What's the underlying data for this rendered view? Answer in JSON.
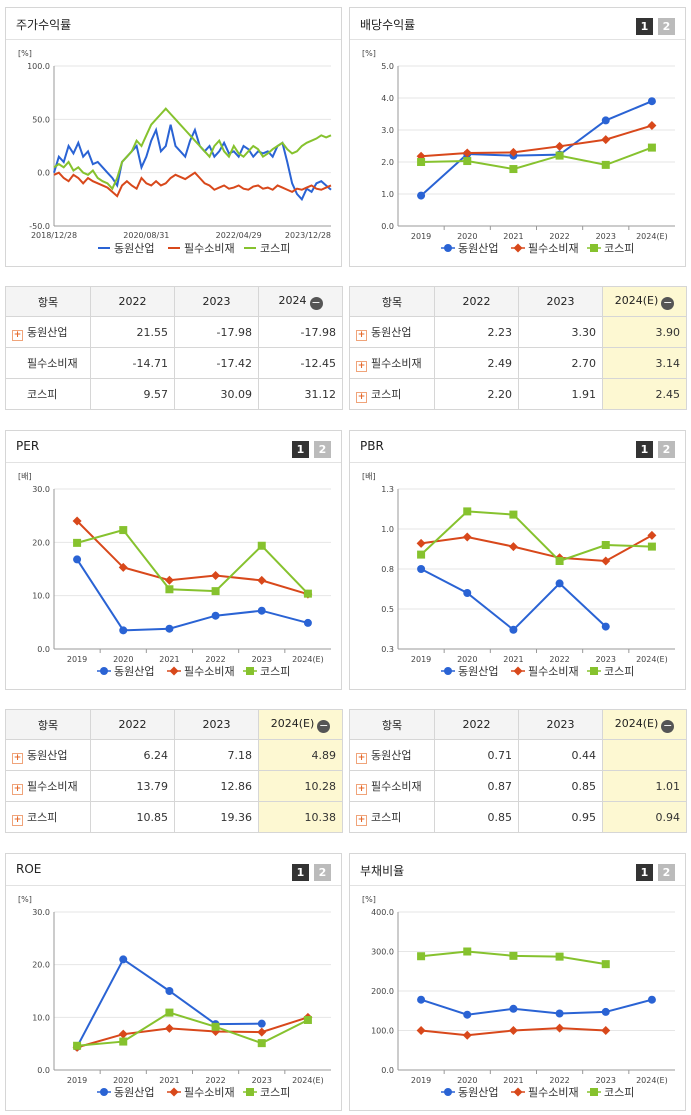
{
  "colors": {
    "company": "#2a63d4",
    "sector": "#d8481b",
    "kospi": "#86c22e"
  },
  "charts": [
    {
      "id": "return",
      "title": "주가수익률",
      "type": "line",
      "unit": "[%]",
      "yticks": [
        "100.0",
        "50.0",
        "0.0",
        "-50.0"
      ],
      "ylim": [
        -50,
        100
      ],
      "xlabels": [
        "2018/12/28",
        "2020/08/31",
        "2022/04/29",
        "2023/12/28"
      ],
      "legend": [
        "동원산업",
        "필수소비재",
        "코스피"
      ],
      "series": [
        {
          "name": "동원산업",
          "values": [
            0,
            15,
            10,
            25,
            18,
            28,
            15,
            20,
            8,
            10,
            5,
            0,
            -5,
            -12,
            10,
            15,
            20,
            25,
            5,
            15,
            30,
            40,
            20,
            25,
            45,
            25,
            20,
            15,
            30,
            40,
            25,
            20,
            25,
            15,
            20,
            28,
            18,
            20,
            15,
            25,
            22,
            15,
            20,
            18,
            20,
            15,
            25,
            28,
            10,
            -10,
            -20,
            -25,
            -15,
            -18,
            -10,
            -8,
            -12,
            -16
          ]
        },
        {
          "name": "필수소비재",
          "values": [
            -2,
            0,
            -5,
            -8,
            -2,
            -5,
            -10,
            -5,
            -8,
            -10,
            -12,
            -14,
            -18,
            -22,
            -12,
            -8,
            -12,
            -15,
            -5,
            -10,
            -12,
            -8,
            -12,
            -10,
            -5,
            -2,
            -4,
            -6,
            -3,
            0,
            -5,
            -10,
            -12,
            -16,
            -14,
            -12,
            -15,
            -14,
            -12,
            -15,
            -16,
            -13,
            -12,
            -15,
            -14,
            -16,
            -12,
            -14,
            -16,
            -18,
            -15,
            -16,
            -14,
            -12,
            -15,
            -16,
            -14,
            -12
          ]
        },
        {
          "name": "코스피",
          "values": [
            5,
            8,
            5,
            10,
            2,
            5,
            0,
            -2,
            2,
            -5,
            -8,
            -10,
            -15,
            -5,
            10,
            15,
            20,
            30,
            25,
            35,
            45,
            50,
            55,
            60,
            55,
            50,
            45,
            40,
            35,
            30,
            25,
            20,
            15,
            25,
            30,
            20,
            15,
            25,
            18,
            15,
            20,
            25,
            22,
            15,
            18,
            22,
            25,
            28,
            22,
            18,
            20,
            25,
            28,
            30,
            32,
            35,
            33,
            35
          ]
        }
      ]
    },
    {
      "id": "dividend",
      "title": "배당수익률",
      "type": "line",
      "unit": "[%]",
      "pages": [
        "1",
        "2"
      ],
      "yticks": [
        "5.0",
        "4.0",
        "3.0",
        "2.0",
        "1.0",
        "0.0"
      ],
      "ylim": [
        0,
        5
      ],
      "categories": [
        "2019",
        "2020",
        "2021",
        "2022",
        "2023",
        "2024(E)"
      ],
      "legend": [
        "동원산업",
        "필수소비재",
        "코스피"
      ],
      "series": [
        {
          "name": "동원산업",
          "values": [
            0.95,
            2.25,
            2.2,
            2.23,
            3.3,
            3.9
          ]
        },
        {
          "name": "필수소비재",
          "values": [
            2.18,
            2.28,
            2.3,
            2.49,
            2.7,
            3.14
          ]
        },
        {
          "name": "코스피",
          "values": [
            2.0,
            2.03,
            1.78,
            2.2,
            1.91,
            2.45
          ]
        }
      ]
    },
    {
      "id": "per",
      "title": "PER",
      "type": "line",
      "unit": "[배]",
      "pages": [
        "1",
        "2"
      ],
      "yticks": [
        "30.0",
        "20.0",
        "10.0",
        "0.0"
      ],
      "ylim": [
        0,
        30
      ],
      "categories": [
        "2019",
        "2020",
        "2021",
        "2022",
        "2023",
        "2024(E)"
      ],
      "legend": [
        "동원산업",
        "필수소비재",
        "코스피"
      ],
      "series": [
        {
          "name": "동원산업",
          "values": [
            16.8,
            3.5,
            3.8,
            6.24,
            7.18,
            4.89
          ]
        },
        {
          "name": "필수소비재",
          "values": [
            24.0,
            15.3,
            12.9,
            13.79,
            12.86,
            10.28
          ]
        },
        {
          "name": "코스피",
          "values": [
            19.9,
            22.3,
            11.2,
            10.85,
            19.36,
            10.38
          ]
        }
      ]
    },
    {
      "id": "pbr",
      "title": "PBR",
      "type": "line",
      "unit": "[배]",
      "pages": [
        "1",
        "2"
      ],
      "yticks": [
        "1.3",
        "1.0",
        "0.8",
        "0.5",
        "0.3"
      ],
      "ylim": [
        0.3,
        1.3
      ],
      "categories": [
        "2019",
        "2020",
        "2021",
        "2022",
        "2023",
        "2024(E)"
      ],
      "legend": [
        "동원산업",
        "필수소비재",
        "코스피"
      ],
      "series": [
        {
          "name": "동원산업",
          "values": [
            0.8,
            0.65,
            0.42,
            0.71,
            0.44,
            null
          ]
        },
        {
          "name": "필수소비재",
          "values": [
            0.96,
            1.0,
            0.94,
            0.87,
            0.85,
            1.01
          ]
        },
        {
          "name": "코스피",
          "values": [
            0.89,
            1.16,
            1.14,
            0.85,
            0.95,
            0.94
          ]
        }
      ]
    },
    {
      "id": "roe",
      "title": "ROE",
      "type": "line",
      "unit": "[%]",
      "pages": [
        "1",
        "2"
      ],
      "yticks": [
        "30.0",
        "20.0",
        "10.0",
        "0.0"
      ],
      "ylim": [
        0,
        30
      ],
      "categories": [
        "2019",
        "2020",
        "2021",
        "2022",
        "2023",
        "2024(E)"
      ],
      "legend": [
        "동원산업",
        "필수소비재",
        "코스피"
      ],
      "series": [
        {
          "name": "동원산업",
          "values": [
            4.4,
            21.0,
            15.0,
            8.7,
            8.8,
            null
          ]
        },
        {
          "name": "필수소비재",
          "values": [
            4.3,
            6.8,
            7.9,
            7.3,
            7.2,
            10.0
          ]
        },
        {
          "name": "코스피",
          "values": [
            4.6,
            5.4,
            10.9,
            8.2,
            5.1,
            9.5
          ]
        }
      ]
    },
    {
      "id": "debt",
      "title": "부채비율",
      "type": "line",
      "unit": "[%]",
      "pages": [
        "1",
        "2"
      ],
      "yticks": [
        "400.0",
        "300.0",
        "200.0",
        "100.0",
        "0.0"
      ],
      "ylim": [
        0,
        400
      ],
      "categories": [
        "2019",
        "2020",
        "2021",
        "2022",
        "2023",
        "2024(E)"
      ],
      "legend": [
        "동원산업",
        "필수소비재",
        "코스피"
      ],
      "series": [
        {
          "name": "동원산업",
          "values": [
            178,
            140,
            155,
            143,
            147,
            178
          ]
        },
        {
          "name": "필수소비재",
          "values": [
            100,
            88,
            100,
            106,
            100,
            null
          ]
        },
        {
          "name": "코스피",
          "values": [
            288,
            300,
            289,
            287,
            268,
            null
          ]
        }
      ]
    }
  ],
  "tables": [
    {
      "id": "return",
      "head": [
        "항목",
        "2022",
        "2023",
        "2024"
      ],
      "collapse": "−",
      "rows": [
        {
          "name": "동원산업",
          "expand": "+",
          "values": [
            "21.55",
            "-17.98",
            "-17.98"
          ]
        },
        {
          "name": "필수소비재",
          "values": [
            "-14.71",
            "-17.42",
            "-12.45"
          ]
        },
        {
          "name": "코스피",
          "values": [
            "9.57",
            "30.09",
            "31.12"
          ]
        }
      ]
    },
    {
      "id": "dividend",
      "head": [
        "항목",
        "2022",
        "2023",
        "2024(E)"
      ],
      "collapse": "−",
      "rows": [
        {
          "name": "동원산업",
          "expand": "+",
          "values": [
            "2.23",
            "3.30",
            "3.90"
          ]
        },
        {
          "name": "필수소비재",
          "expand": "+",
          "values": [
            "2.49",
            "2.70",
            "3.14"
          ]
        },
        {
          "name": "코스피",
          "expand": "+",
          "values": [
            "2.20",
            "1.91",
            "2.45"
          ]
        }
      ]
    },
    {
      "id": "per",
      "head": [
        "항목",
        "2022",
        "2023",
        "2024(E)"
      ],
      "collapse": "−",
      "rows": [
        {
          "name": "동원산업",
          "expand": "+",
          "values": [
            "6.24",
            "7.18",
            "4.89"
          ]
        },
        {
          "name": "필수소비재",
          "expand": "+",
          "values": [
            "13.79",
            "12.86",
            "10.28"
          ]
        },
        {
          "name": "코스피",
          "expand": "+",
          "values": [
            "10.85",
            "19.36",
            "10.38"
          ]
        }
      ]
    },
    {
      "id": "pbr",
      "head": [
        "항목",
        "2022",
        "2023",
        "2024(E)"
      ],
      "collapse": "−",
      "rows": [
        {
          "name": "동원산업",
          "expand": "+",
          "values": [
            "0.71",
            "0.44",
            ""
          ]
        },
        {
          "name": "필수소비재",
          "expand": "+",
          "values": [
            "0.87",
            "0.85",
            "1.01"
          ]
        },
        {
          "name": "코스피",
          "expand": "+",
          "values": [
            "0.85",
            "0.95",
            "0.94"
          ]
        }
      ]
    }
  ]
}
